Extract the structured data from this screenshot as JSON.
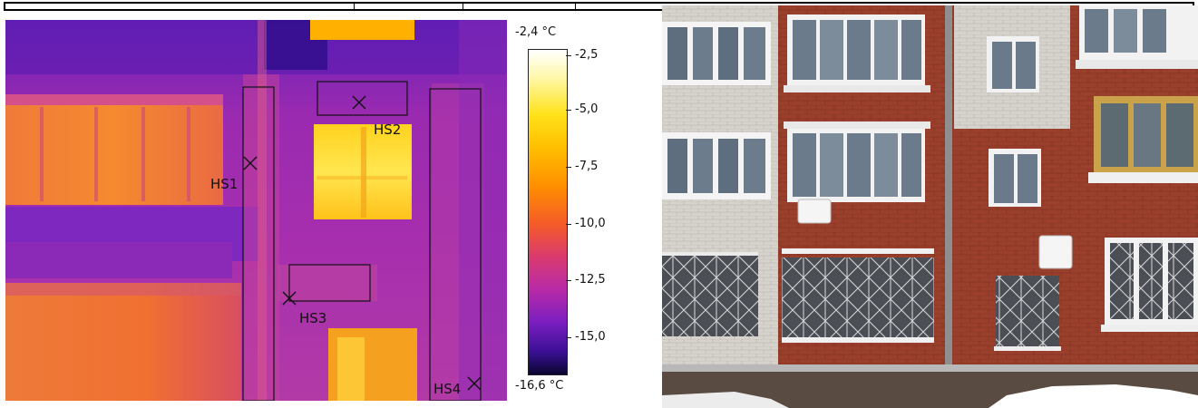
{
  "scale": {
    "max_label": "-2,4 °C",
    "min_label": "-16,6 °C",
    "ticks": [
      "-2,5",
      "-5,0",
      "-7,5",
      "-10,0",
      "-12,5",
      "-15,0"
    ],
    "gradient_colors": [
      "#ffffff",
      "#ffe21a",
      "#ff8f00",
      "#d93a70",
      "#7a1ec0",
      "#0a0630"
    ]
  },
  "hotspots": [
    {
      "label": "HS1"
    },
    {
      "label": "HS2"
    },
    {
      "label": "HS3"
    },
    {
      "label": "HS4"
    }
  ]
}
